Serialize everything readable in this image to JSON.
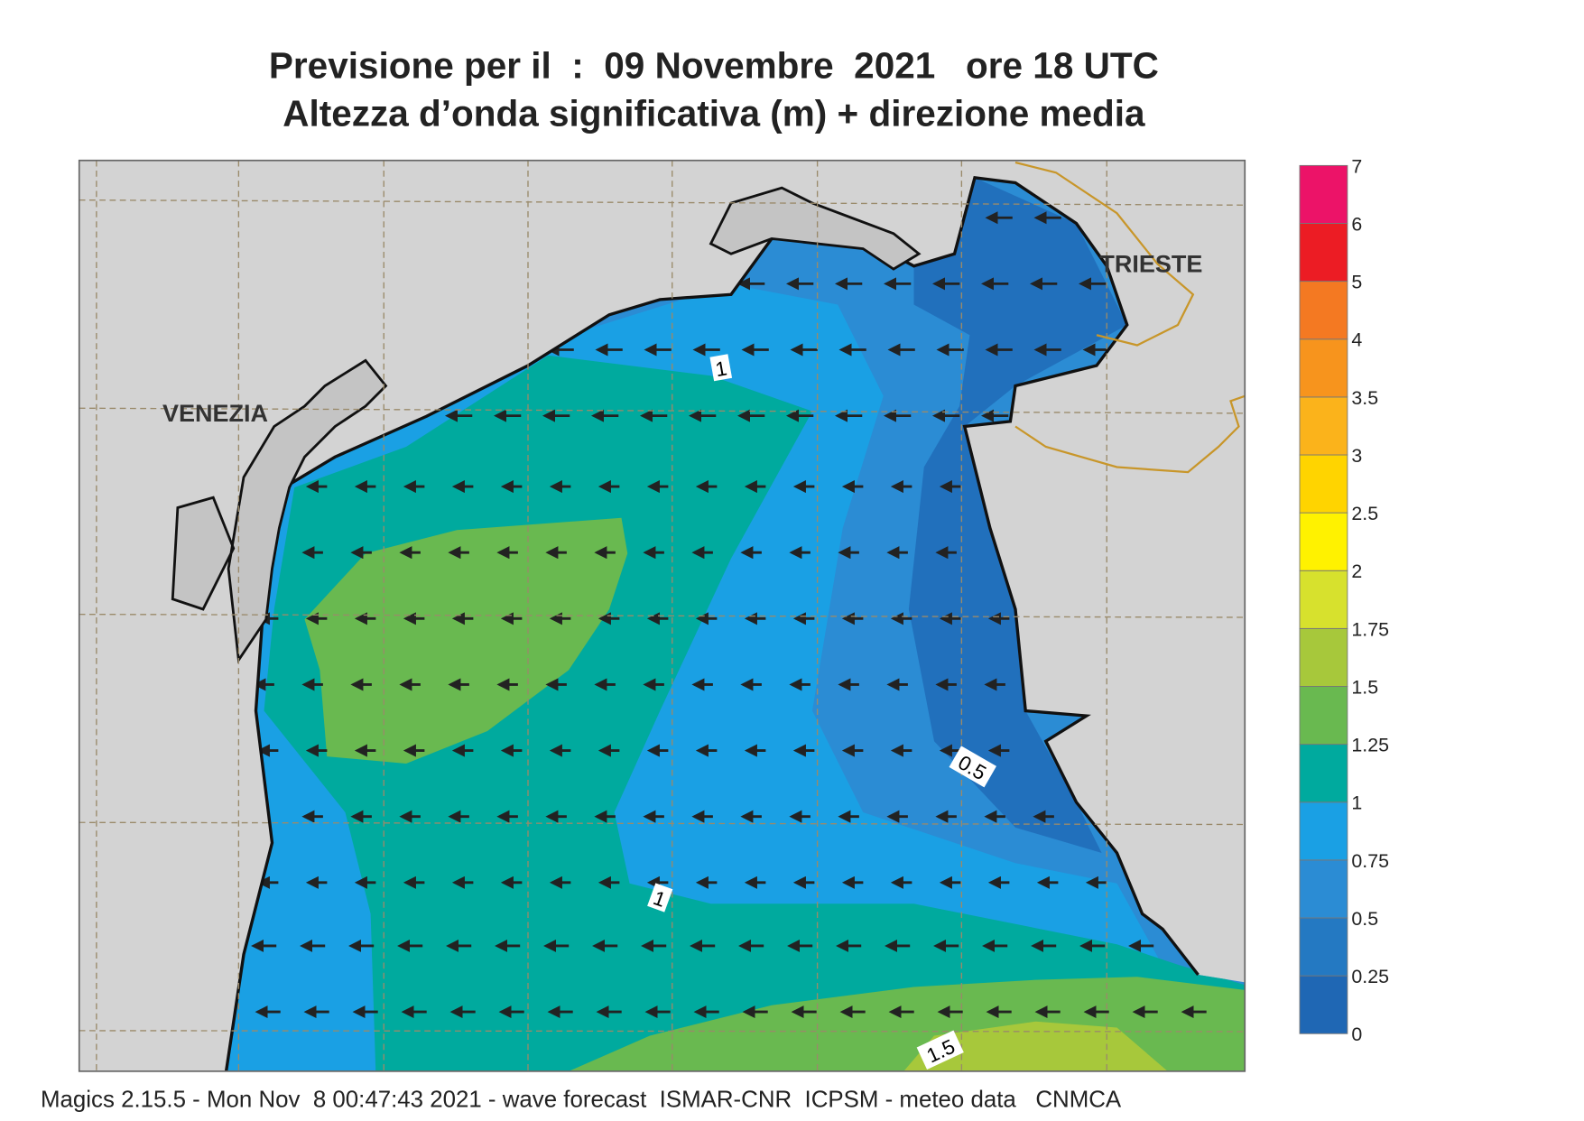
{
  "header": {
    "title": "Previsione per il  :  09 Novembre  2021   ore 18 UTC",
    "subtitle": "Altezza d’onda significativa (m) + direzione media"
  },
  "map": {
    "places": [
      "VENEZIA",
      "TRIESTE"
    ],
    "contour_labels": [
      "1",
      "0.5",
      "1",
      "1.5"
    ]
  },
  "colorbar": {
    "ticks": [
      "0",
      "0.25",
      "0.5",
      "0.75",
      "1",
      "1.25",
      "1.5",
      "1.75",
      "2",
      "2.5",
      "3",
      "3.5",
      "4",
      "5",
      "6",
      "7"
    ],
    "colors": [
      "#1f67b4",
      "#2479c2",
      "#2b8cd4",
      "#1aa0e4",
      "#00aa9e",
      "#69b950",
      "#a7c83b",
      "#d7e12d",
      "#fff200",
      "#ffd400",
      "#fbb31b",
      "#f7941d",
      "#f47922",
      "#ec1c24",
      "#ec1368"
    ]
  },
  "footer": "Magics 2.15.5 - Mon Nov  8 00:47:43 2021 - wave forecast  ISMAR-CNR  ICPSM - meteo data   CNMCA"
}
